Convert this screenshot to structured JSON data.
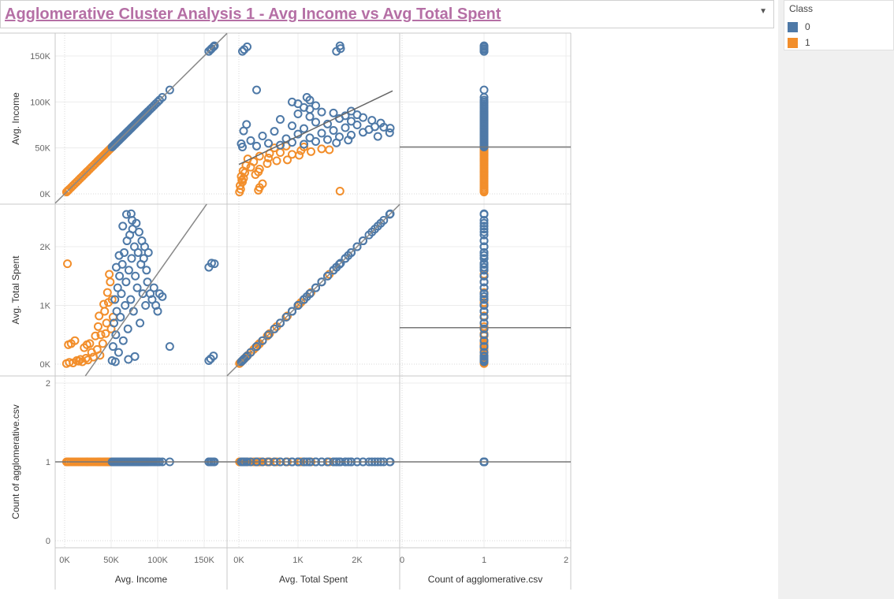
{
  "title": "Agglomerative Cluster Analysis 1 - Avg Income vs Avg Total Spent",
  "legend": {
    "title": "Class",
    "items": [
      {
        "label": "0",
        "color": "#4e79a7"
      },
      {
        "label": "1",
        "color": "#f28e2b"
      }
    ]
  },
  "chart_data": {
    "type": "scatter",
    "layout": "scatter-matrix",
    "marker": "open-circle",
    "fields": [
      {
        "key": "income",
        "label": "Avg. Income",
        "range": [
          0,
          165000
        ],
        "ticks": [
          0,
          50000,
          100000,
          150000
        ],
        "tick_labels": [
          "0K",
          "50K",
          "100K",
          "150K"
        ]
      },
      {
        "key": "spent",
        "label": "Avg. Total Spent",
        "range": [
          0,
          2550
        ],
        "ticks": [
          0,
          1000,
          2000
        ],
        "tick_labels": [
          "0K",
          "1K",
          "2K"
        ]
      },
      {
        "key": "count",
        "label": "Count of agglomerative.csv",
        "range": [
          0,
          2
        ],
        "ticks": [
          0,
          1,
          2
        ],
        "tick_labels": [
          "0",
          "1",
          "2"
        ]
      }
    ],
    "series": [
      {
        "name": "0",
        "color": "#4e79a7",
        "points": [
          [
            51000,
            60
          ],
          [
            52000,
            300
          ],
          [
            53000,
            700
          ],
          [
            54000,
            1100
          ],
          [
            55000,
            500
          ],
          [
            56000,
            900
          ],
          [
            57000,
            1300
          ],
          [
            58000,
            200
          ],
          [
            59000,
            1500
          ],
          [
            60000,
            800
          ],
          [
            61000,
            1200
          ],
          [
            62000,
            1700
          ],
          [
            63000,
            400
          ],
          [
            64000,
            1900
          ],
          [
            65000,
            1000
          ],
          [
            66000,
            1400
          ],
          [
            67000,
            2100
          ],
          [
            68000,
            600
          ],
          [
            69000,
            1600
          ],
          [
            70000,
            2200
          ],
          [
            71000,
            1100
          ],
          [
            72000,
            1800
          ],
          [
            73000,
            2300
          ],
          [
            74000,
            900
          ],
          [
            75000,
            2000
          ],
          [
            76000,
            1500
          ],
          [
            77000,
            2400
          ],
          [
            78000,
            1300
          ],
          [
            79000,
            1900
          ],
          [
            80000,
            2250
          ],
          [
            81000,
            700
          ],
          [
            82000,
            1700
          ],
          [
            83000,
            2100
          ],
          [
            84000,
            1200
          ],
          [
            85000,
            1800
          ],
          [
            86000,
            2000
          ],
          [
            87000,
            1000
          ],
          [
            88000,
            1600
          ],
          [
            89000,
            1400
          ],
          [
            90000,
            1900
          ],
          [
            92000,
            1200
          ],
          [
            94000,
            1100
          ],
          [
            96000,
            1300
          ],
          [
            98000,
            1000
          ],
          [
            100000,
            900
          ],
          [
            102000,
            1200
          ],
          [
            105000,
            1150
          ],
          [
            113000,
            300
          ],
          [
            55500,
            1650
          ],
          [
            58500,
            1850
          ],
          [
            66500,
            2550
          ],
          [
            71500,
            2560
          ],
          [
            62500,
            2350
          ],
          [
            72500,
            2450
          ],
          [
            68500,
            80
          ],
          [
            75500,
            130
          ],
          [
            54500,
            40
          ],
          [
            155000,
            60
          ],
          [
            157000,
            90
          ],
          [
            160000,
            140
          ],
          [
            155000,
            1650
          ],
          [
            158000,
            1720
          ],
          [
            161000,
            1710
          ]
        ]
      },
      {
        "name": "1",
        "color": "#f28e2b",
        "points": [
          [
            3000,
            1710
          ],
          [
            2000,
            10
          ],
          [
            5000,
            30
          ],
          [
            7000,
            350
          ],
          [
            9000,
            20
          ],
          [
            11000,
            400
          ],
          [
            13000,
            60
          ],
          [
            15000,
            50
          ],
          [
            17000,
            80
          ],
          [
            19000,
            40
          ],
          [
            21000,
            280
          ],
          [
            23000,
            100
          ],
          [
            25000,
            70
          ],
          [
            27000,
            350
          ],
          [
            29000,
            200
          ],
          [
            31000,
            120
          ],
          [
            33000,
            480
          ],
          [
            35000,
            250
          ],
          [
            37000,
            820
          ],
          [
            39000,
            500
          ],
          [
            41000,
            350
          ],
          [
            43000,
            900
          ],
          [
            45000,
            700
          ],
          [
            46000,
            1220
          ],
          [
            47000,
            1050
          ],
          [
            48000,
            1530
          ],
          [
            49000,
            1400
          ],
          [
            50000,
            600
          ],
          [
            51000,
            1100
          ],
          [
            52000,
            800
          ],
          [
            24000,
            330
          ],
          [
            36000,
            640
          ],
          [
            42000,
            1020
          ],
          [
            44000,
            520
          ],
          [
            38000,
            150
          ],
          [
            4000,
            330
          ]
        ]
      }
    ],
    "reference_lines": {
      "income_vs_spent": [
        [
          0,
          -700
        ],
        [
          165000,
          3000
        ]
      ],
      "spent_vs_income": [
        [
          0,
          32000
        ],
        [
          2600,
          112000
        ]
      ],
      "count_mean_income": 51000,
      "count_mean_spent": 620
    }
  }
}
